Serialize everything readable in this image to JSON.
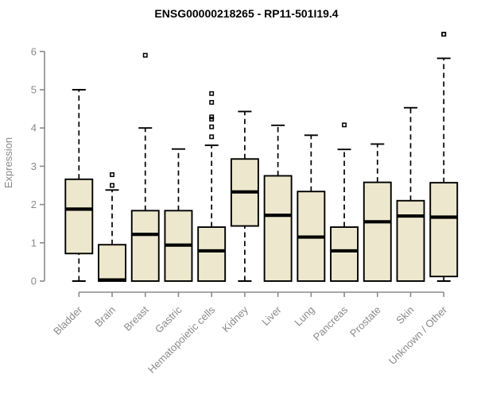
{
  "chart_data": {
    "type": "boxplot",
    "title": "ENSG00000218265 - RP11-501I19.4",
    "ylabel": "Expression",
    "xlabel": "",
    "ylim": [
      0,
      6.6
    ],
    "yticks": [
      0,
      1,
      2,
      3,
      4,
      5,
      6
    ],
    "grid": false,
    "legend": "none",
    "categories": [
      "Bladder",
      "Brain",
      "Breast",
      "Gastric",
      "Hematopoietic cells",
      "Kidney",
      "Liver",
      "Lung",
      "Pancreas",
      "Prostate",
      "Skin",
      "Unknown / Other"
    ],
    "series": [
      {
        "category": "Bladder",
        "whisker_low": 0,
        "q1": 0.72,
        "median": 1.88,
        "q3": 2.66,
        "whisker_high": 5.0,
        "outliers": []
      },
      {
        "category": "Brain",
        "whisker_low": 0,
        "q1": 0,
        "median": 0.03,
        "q3": 0.95,
        "whisker_high": 2.38,
        "outliers": [
          2.5,
          2.78
        ]
      },
      {
        "category": "Breast",
        "whisker_low": 0,
        "q1": 0,
        "median": 1.22,
        "q3": 1.84,
        "whisker_high": 4.0,
        "outliers": [
          5.9
        ]
      },
      {
        "category": "Gastric",
        "whisker_low": 0,
        "q1": 0,
        "median": 0.94,
        "q3": 1.84,
        "whisker_high": 3.45,
        "outliers": []
      },
      {
        "category": "Hematopoietic cells",
        "whisker_low": 0,
        "q1": 0,
        "median": 0.79,
        "q3": 1.41,
        "whisker_high": 3.55,
        "outliers": [
          3.77,
          4.03,
          4.23,
          4.29,
          4.67,
          4.9
        ]
      },
      {
        "category": "Kidney",
        "whisker_low": 0,
        "q1": 1.44,
        "median": 2.33,
        "q3": 3.19,
        "whisker_high": 4.43,
        "outliers": []
      },
      {
        "category": "Liver",
        "whisker_low": 0,
        "q1": 0,
        "median": 1.72,
        "q3": 2.75,
        "whisker_high": 4.07,
        "outliers": []
      },
      {
        "category": "Lung",
        "whisker_low": 0,
        "q1": 0,
        "median": 1.15,
        "q3": 2.34,
        "whisker_high": 3.81,
        "outliers": []
      },
      {
        "category": "Pancreas",
        "whisker_low": 0,
        "q1": 0,
        "median": 0.79,
        "q3": 1.41,
        "whisker_high": 3.44,
        "outliers": [
          4.08
        ]
      },
      {
        "category": "Prostate",
        "whisker_low": 0,
        "q1": 0,
        "median": 1.55,
        "q3": 2.58,
        "whisker_high": 3.58,
        "outliers": []
      },
      {
        "category": "Skin",
        "whisker_low": 0,
        "q1": 0,
        "median": 1.7,
        "q3": 2.1,
        "whisker_high": 4.53,
        "outliers": []
      },
      {
        "category": "Unknown / Other",
        "whisker_low": 0,
        "q1": 0.12,
        "median": 1.67,
        "q3": 2.57,
        "whisker_high": 5.82,
        "outliers": [
          6.45,
          6.45
        ]
      }
    ],
    "colors": {
      "box_fill": "#EDE8CD",
      "box_stroke": "#000000",
      "median": "#000000",
      "whisker": "#000000",
      "outlier": "#000000",
      "axis": "#8a8a8a",
      "tick_label": "#8a8a8a",
      "title": "#000000",
      "background": "#ffffff"
    }
  }
}
